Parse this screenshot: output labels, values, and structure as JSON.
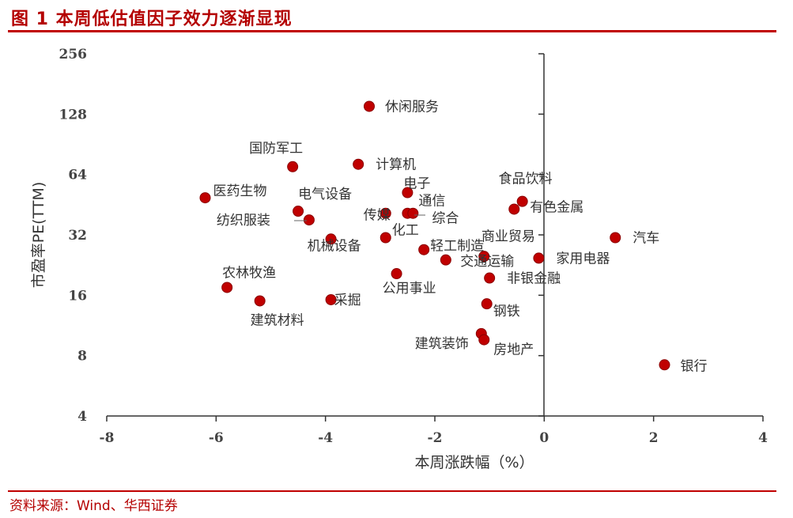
{
  "header": {
    "title": "图 1   本周低估值因子效力逐渐显现"
  },
  "footer": {
    "source": "资料来源：Wind、华西证券"
  },
  "chart_data": {
    "type": "scatter",
    "title": "本周低估值因子效力逐渐显现",
    "xlabel": "本周涨跌幅（%）",
    "ylabel": "市盈率PE(TTM)",
    "y_scale": "log2",
    "xlim": [
      -8,
      4
    ],
    "ylim": [
      4,
      256
    ],
    "x_ticks": [
      "-8",
      "-6",
      "-4",
      "-2",
      "0",
      "2",
      "4"
    ],
    "y_ticks": [
      "4",
      "8",
      "16",
      "32",
      "64",
      "128",
      "256"
    ],
    "point_color": "#c00000",
    "points": [
      {
        "label": "休闲服务",
        "x": -3.2,
        "y": 140
      },
      {
        "label": "国防军工",
        "x": -4.6,
        "y": 70
      },
      {
        "label": "计算机",
        "x": -3.4,
        "y": 72
      },
      {
        "label": "医药生物",
        "x": -6.2,
        "y": 49
      },
      {
        "label": "电气设备",
        "x": -4.5,
        "y": 42
      },
      {
        "label": "纺织服装",
        "x": -4.3,
        "y": 38
      },
      {
        "label": "电子",
        "x": -2.5,
        "y": 52
      },
      {
        "label": "传媒",
        "x": -2.9,
        "y": 41
      },
      {
        "label": "通信",
        "x": -2.5,
        "y": 41
      },
      {
        "label": "综合",
        "x": -2.4,
        "y": 41
      },
      {
        "label": "食品饮料",
        "x": -0.4,
        "y": 47
      },
      {
        "label": "有色金属",
        "x": -0.55,
        "y": 43
      },
      {
        "label": "机械设备",
        "x": -3.9,
        "y": 30.5
      },
      {
        "label": "化工",
        "x": -2.9,
        "y": 31
      },
      {
        "label": "轻工制造",
        "x": -2.2,
        "y": 27
      },
      {
        "label": "商业贸易",
        "x": -1.8,
        "y": 24
      },
      {
        "label": "汽车",
        "x": 1.3,
        "y": 31
      },
      {
        "label": "交通运输",
        "x": -1.1,
        "y": 25
      },
      {
        "label": "家用电器",
        "x": -0.1,
        "y": 24.5
      },
      {
        "label": "公用事业",
        "x": -2.7,
        "y": 20.5
      },
      {
        "label": "非银金融",
        "x": -1.0,
        "y": 19.5
      },
      {
        "label": "农林牧渔",
        "x": -5.8,
        "y": 17.5
      },
      {
        "label": "建筑材料",
        "x": -5.2,
        "y": 15
      },
      {
        "label": "采掘",
        "x": -3.9,
        "y": 15.2
      },
      {
        "label": "钢铁",
        "x": -1.05,
        "y": 14.5
      },
      {
        "label": "建筑装饰",
        "x": -1.15,
        "y": 10.3
      },
      {
        "label": "房地产",
        "x": -1.1,
        "y": 9.6
      },
      {
        "label": "银行",
        "x": 2.2,
        "y": 7.2
      }
    ]
  }
}
